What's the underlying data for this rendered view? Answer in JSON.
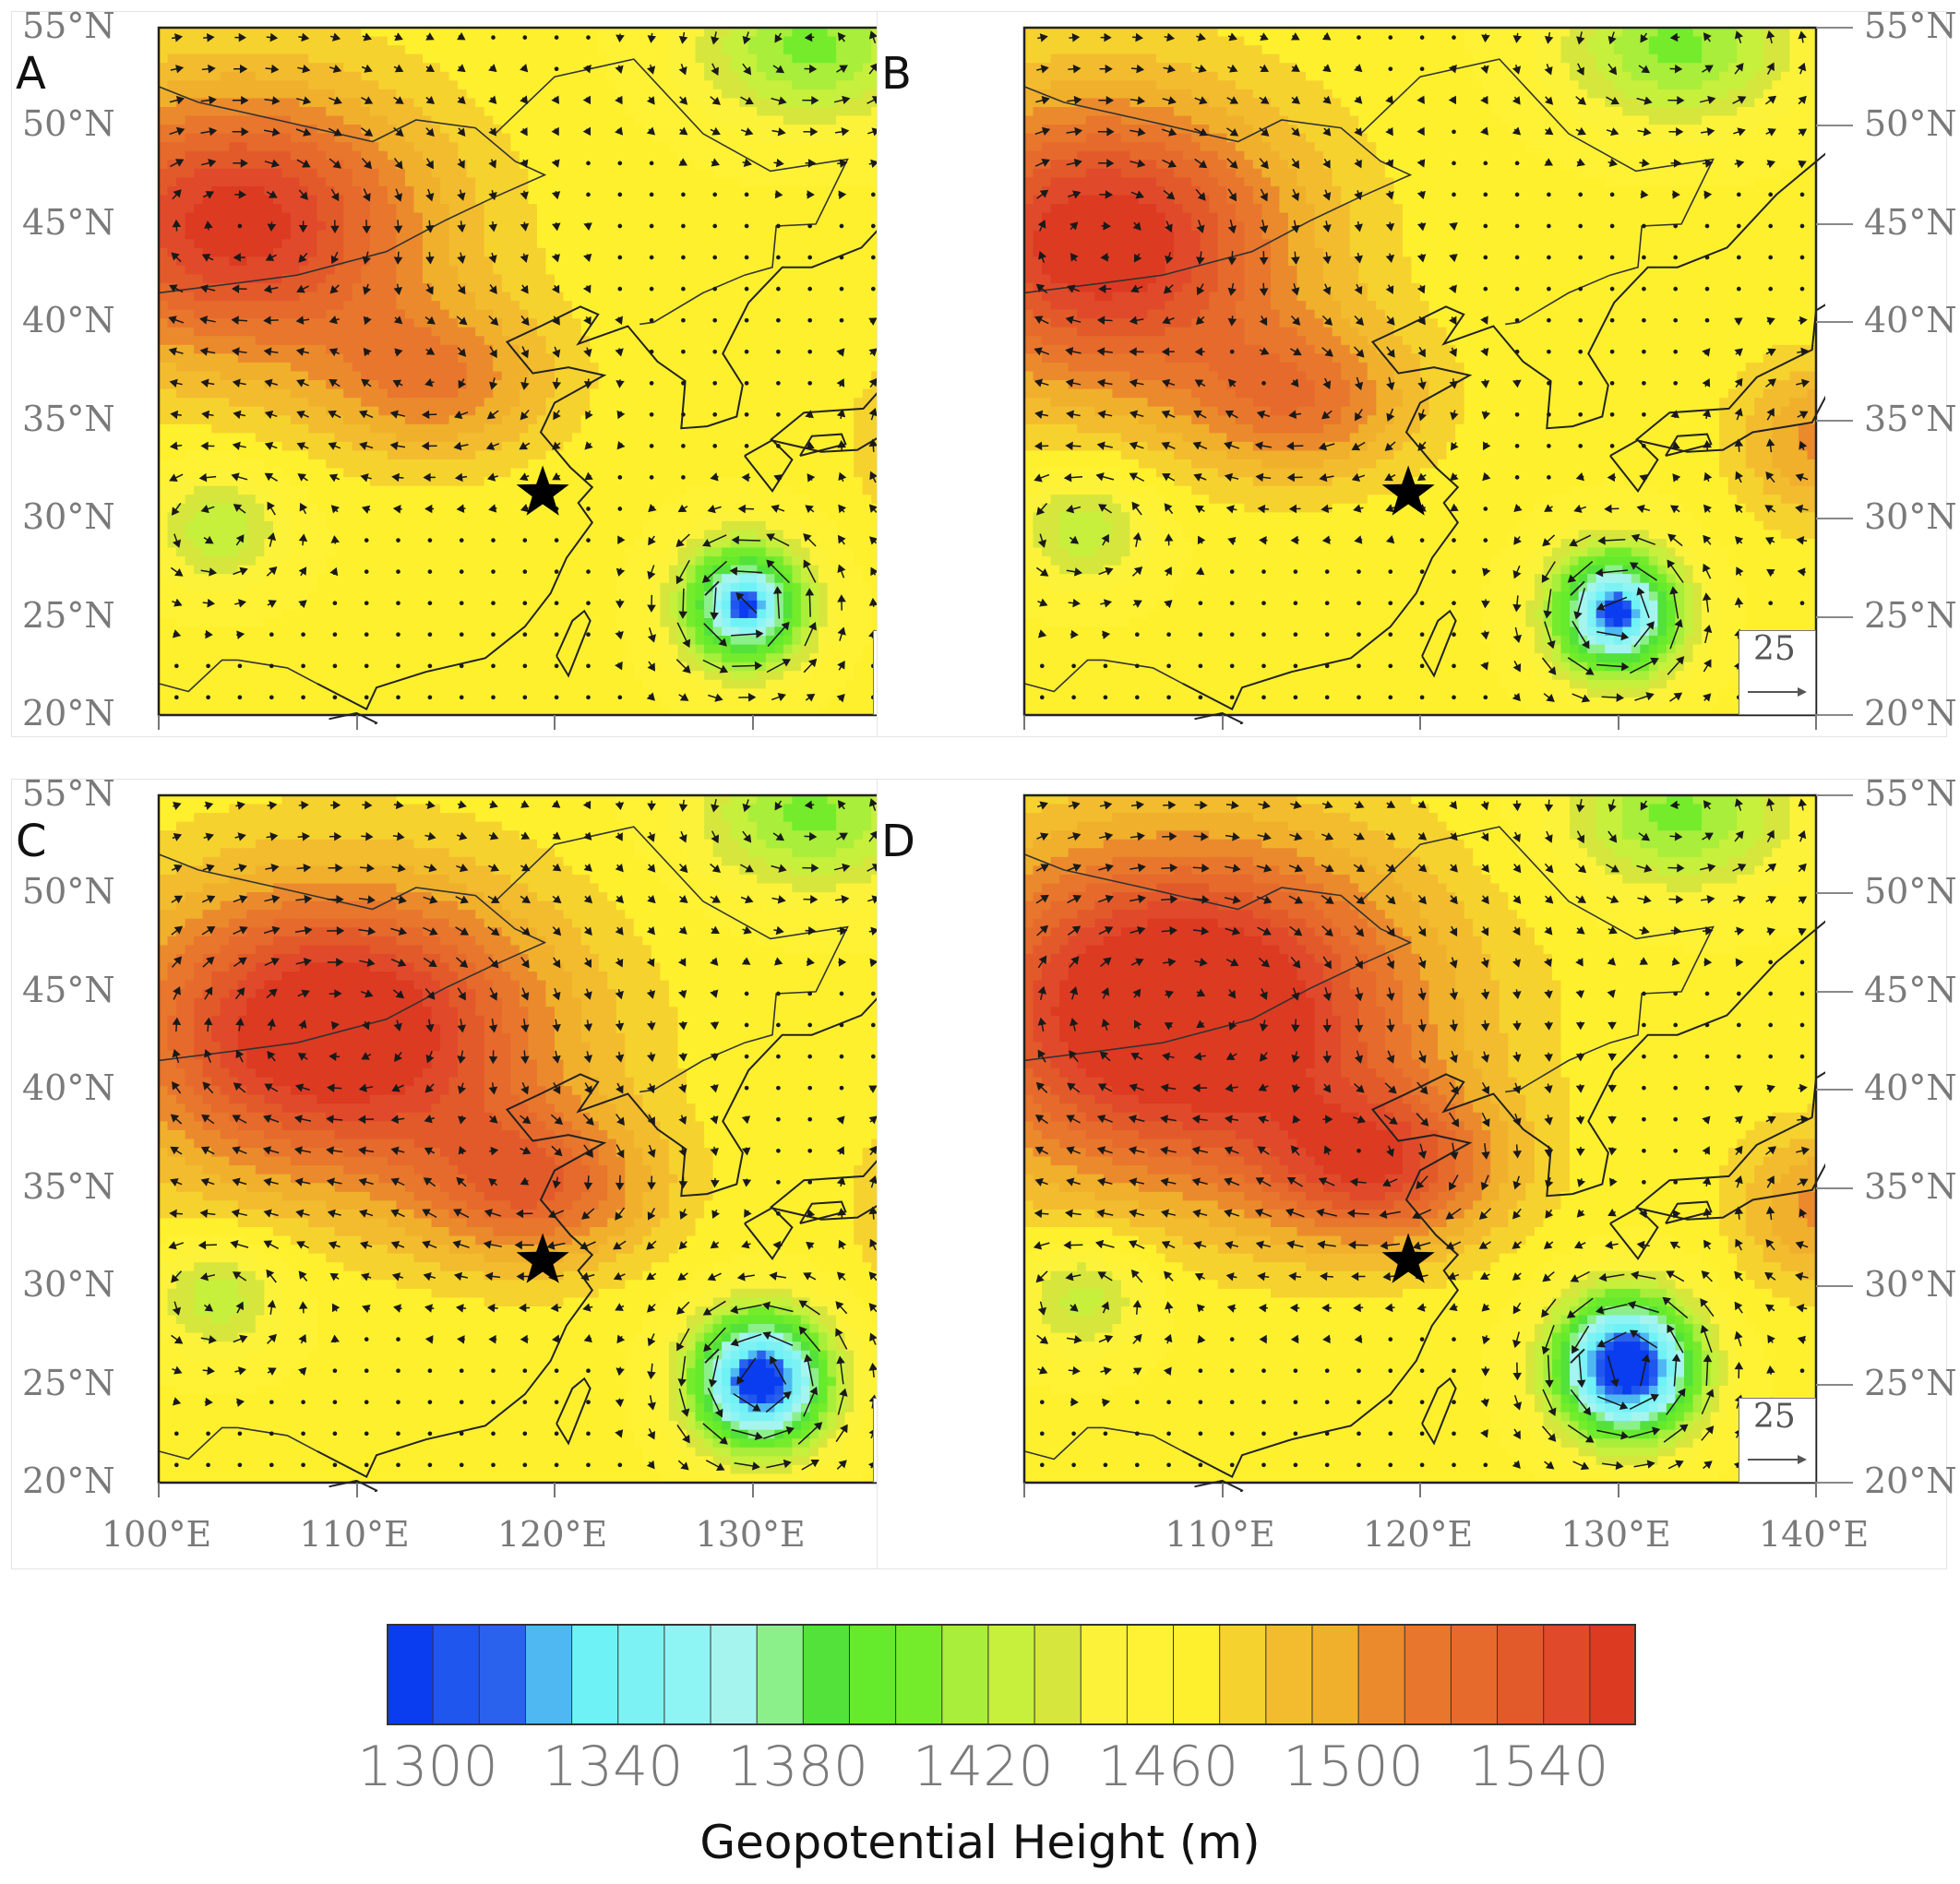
{
  "figure": {
    "panels": [
      {
        "id": "A",
        "label": "A",
        "show_lat_left": true,
        "show_lat_right": false,
        "show_lon": false,
        "high_center": [
          104,
          45
        ],
        "high_extent": [
          9,
          6.5
        ],
        "high_strength": 95,
        "low_center": [
          129.6,
          25.6
        ],
        "low_depth": 120,
        "low_radius": 3.2,
        "trough_strength": 45
      },
      {
        "id": "B",
        "label": "B",
        "show_lat_left": false,
        "show_lat_right": true,
        "show_lon": false,
        "high_center": [
          104,
          44
        ],
        "high_extent": [
          9,
          7
        ],
        "high_strength": 100,
        "low_center": [
          129.9,
          25.2
        ],
        "low_depth": 130,
        "low_radius": 3.3,
        "trough_strength": 50
      },
      {
        "id": "C",
        "label": "C",
        "show_lat_left": true,
        "show_lat_right": false,
        "show_lon": true,
        "high_center": [
          109,
          43
        ],
        "high_extent": [
          10,
          7
        ],
        "high_strength": 110,
        "low_center": [
          130.4,
          25.2
        ],
        "low_depth": 160,
        "low_radius": 3.4,
        "trough_strength": 60
      },
      {
        "id": "D",
        "label": "D",
        "show_lat_left": false,
        "show_lat_right": true,
        "show_lon": true,
        "high_center": [
          108,
          44
        ],
        "high_extent": [
          11,
          8
        ],
        "high_strength": 120,
        "low_center": [
          130.4,
          25.9
        ],
        "low_depth": 175,
        "low_radius": 3.5,
        "trough_strength": 70
      }
    ],
    "lat_ticks": [
      "20°N",
      "25°N",
      "30°N",
      "35°N",
      "40°N",
      "45°N",
      "50°N",
      "55°N"
    ],
    "lat_values": [
      20,
      25,
      30,
      35,
      40,
      45,
      50,
      55
    ],
    "lon_ticks": [
      "100°E",
      "110°E",
      "120°E",
      "130°E",
      "140°E"
    ],
    "lon_values": [
      100,
      110,
      120,
      130,
      140
    ],
    "lat_range": [
      20,
      55
    ],
    "lon_range": [
      100,
      140
    ],
    "marker": {
      "lon": 119.4,
      "lat": 31.3,
      "symbol": "star"
    },
    "reference_vector": {
      "label": "25",
      "magnitude": 25
    }
  },
  "colorbar": {
    "title": "Geopotential Height (m)",
    "min": 1290,
    "max": 1560,
    "step": 10,
    "tick_labels": [
      "1300",
      "1340",
      "1380",
      "1420",
      "1460",
      "1500",
      "1540"
    ],
    "tick_values": [
      1300,
      1340,
      1380,
      1420,
      1460,
      1500,
      1540
    ],
    "colors": [
      "#0a3cf0",
      "#1f56ee",
      "#2a62ee",
      "#4fb8f2",
      "#6ef2f6",
      "#7df2f4",
      "#8ef4f4",
      "#a6f4ee",
      "#8cf08a",
      "#52e23a",
      "#66ea2c",
      "#74ec2c",
      "#a8ee3a",
      "#c6f03c",
      "#d6e63c",
      "#fdf23a",
      "#fff234",
      "#fff02e",
      "#f6d22e",
      "#f2bc2e",
      "#f0b02c",
      "#eb8a2c",
      "#e8762c",
      "#e66a2c",
      "#e35a2a",
      "#e04a2a",
      "#dd3a22"
    ]
  }
}
